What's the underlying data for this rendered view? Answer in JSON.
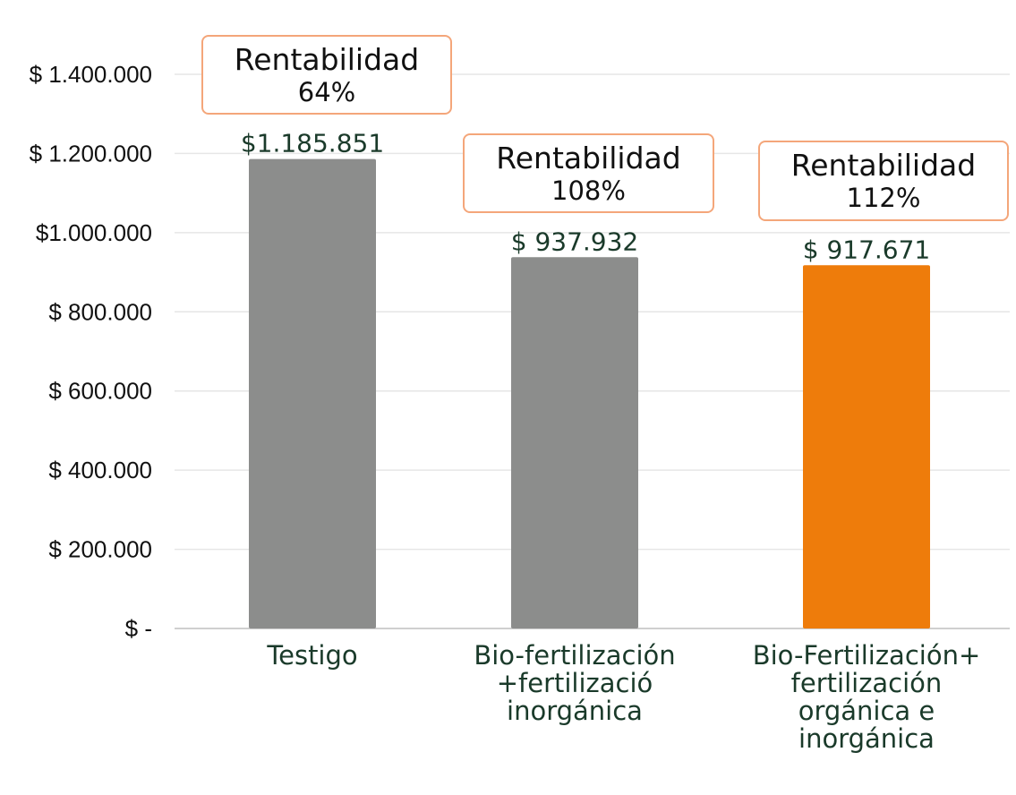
{
  "chart_data": {
    "type": "bar",
    "y_tick_labels": [
      "$ -",
      "$ 200.000",
      "$ 400.000",
      "$ 600.000",
      "$ 800.000",
      "$1.000.000",
      "$ 1.200.000",
      "$ 1.400.000"
    ],
    "y_tick_values": [
      0,
      200000,
      400000,
      600000,
      800000,
      1000000,
      1200000,
      1400000
    ],
    "ylim": [
      0,
      1400000
    ],
    "grid": true,
    "categories": [
      [
        "Testigo"
      ],
      [
        "Bio-fertilización",
        "+fertilizació",
        "inorgánica"
      ],
      [
        "Bio-Fertilización+",
        "fertilización",
        "orgánica e",
        "inorgánica"
      ]
    ],
    "values": [
      1185851,
      937932,
      917671
    ],
    "value_labels": [
      "$1.185.851",
      "$ 937.932",
      "$ 917.671"
    ],
    "bar_colors": [
      "#8c8d8c",
      "#8c8d8c",
      "#ee7c0b"
    ],
    "annotations": [
      {
        "title": "Rentabilidad",
        "value": "64%"
      },
      {
        "title": "Rentabilidad",
        "value": "108%"
      },
      {
        "title": "Rentabilidad",
        "value": "112%"
      }
    ],
    "annotation_border_color": "#f4a67a",
    "grid_color": "#e6e6e6",
    "axis_color": "#cfcfcf"
  }
}
